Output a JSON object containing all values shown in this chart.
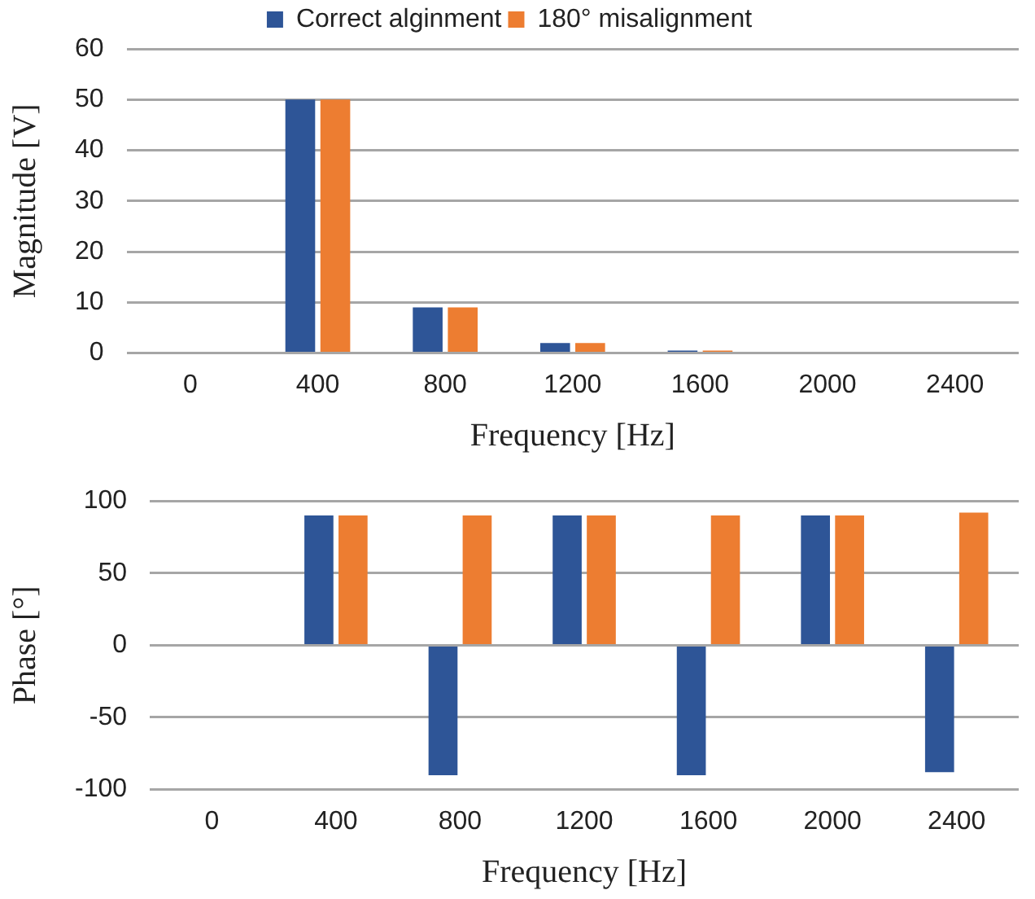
{
  "chart_data": [
    {
      "type": "bar",
      "xlabel": "Frequency [Hz]",
      "ylabel": "Magnitude [V]",
      "categories": [
        "0",
        "400",
        "800",
        "1200",
        "1600",
        "2000",
        "2400"
      ],
      "series": [
        {
          "name": "Correct alginment",
          "color": "#2e5597",
          "values": [
            0,
            50,
            9,
            2,
            0.5,
            0,
            0
          ]
        },
        {
          "name": "180° misalignment",
          "color": "#ed7d31",
          "values": [
            0,
            50,
            9,
            2,
            0.5,
            0,
            0
          ]
        }
      ],
      "ylim": [
        0,
        60
      ],
      "yticks": [
        0,
        10,
        20,
        30,
        40,
        50,
        60
      ],
      "grid": "y",
      "legend": "top"
    },
    {
      "type": "bar",
      "xlabel": "Frequency [Hz]",
      "ylabel": "Phase [°]",
      "categories": [
        "0",
        "400",
        "800",
        "1200",
        "1600",
        "2000",
        "2400"
      ],
      "series": [
        {
          "color": "#2e5597",
          "values": [
            0,
            90,
            -90,
            90,
            -90,
            90,
            -88
          ]
        },
        {
          "color": "#ed7d31",
          "values": [
            0,
            90,
            90,
            90,
            90,
            90,
            92
          ]
        }
      ],
      "ylim": [
        -100,
        100
      ],
      "yticks": [
        -100,
        -50,
        0,
        50,
        100
      ],
      "grid": "y"
    }
  ]
}
